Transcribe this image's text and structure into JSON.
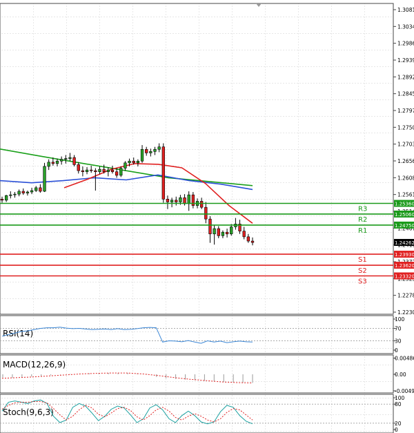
{
  "chart_data": {
    "type": "candlestick",
    "price_axis": {
      "ticks": [
        "1.30810",
        "1.30340",
        "1.29860",
        "1.29390",
        "1.28920",
        "1.28450",
        "1.27970",
        "1.27500",
        "1.27030",
        "1.26560",
        "1.26080",
        "1.25610",
        "1.25140",
        "1.24670",
        "1.24190",
        "1.23720",
        "1.23250",
        "1.22780",
        "1.22300"
      ],
      "range": [
        1.223,
        1.3081
      ]
    },
    "current_price": {
      "label": "1.24262",
      "value": 1.24262
    },
    "levels": [
      {
        "name": "R3",
        "tag": "1.25360",
        "value": 1.2536,
        "color": "#1a9a1a"
      },
      {
        "name": "R2",
        "tag": "1.25060",
        "value": 1.2506,
        "color": "#1a9a1a"
      },
      {
        "name": "R1",
        "tag": "1.24750",
        "value": 1.2475,
        "color": "#1a9a1a"
      },
      {
        "name": "S1",
        "tag": "1.23930",
        "value": 1.2393,
        "color": "#e02020"
      },
      {
        "name": "S2",
        "tag": "1.23620",
        "value": 1.2362,
        "color": "#e02020"
      },
      {
        "name": "S3",
        "tag": "1.23320",
        "value": 1.2332,
        "color": "#e02020"
      }
    ],
    "candles": [
      [
        1.2548,
        1.2555,
        1.2538,
        1.2545
      ],
      [
        1.2545,
        1.256,
        1.254,
        1.2558
      ],
      [
        1.2558,
        1.257,
        1.255,
        1.256
      ],
      [
        1.256,
        1.2568,
        1.2552,
        1.2562
      ],
      [
        1.2562,
        1.2575,
        1.2556,
        1.257
      ],
      [
        1.257,
        1.2578,
        1.256,
        1.2565
      ],
      [
        1.2565,
        1.2572,
        1.2558,
        1.2568
      ],
      [
        1.2568,
        1.258,
        1.2562,
        1.2572
      ],
      [
        1.2572,
        1.2585,
        1.2568,
        1.258
      ],
      [
        1.258,
        1.259,
        1.2566,
        1.257
      ],
      [
        1.257,
        1.265,
        1.2568,
        1.264
      ],
      [
        1.264,
        1.266,
        1.263,
        1.2652
      ],
      [
        1.2652,
        1.2665,
        1.2642,
        1.2648
      ],
      [
        1.2648,
        1.2662,
        1.264,
        1.2655
      ],
      [
        1.2655,
        1.2668,
        1.2645,
        1.266
      ],
      [
        1.266,
        1.2672,
        1.2648,
        1.2662
      ],
      [
        1.2662,
        1.2678,
        1.2655,
        1.2665
      ],
      [
        1.2665,
        1.2672,
        1.264,
        1.2645
      ],
      [
        1.2645,
        1.2652,
        1.262,
        1.2628
      ],
      [
        1.2628,
        1.264,
        1.2612,
        1.2625
      ],
      [
        1.2625,
        1.2638,
        1.2618,
        1.263
      ],
      [
        1.263,
        1.2642,
        1.2622,
        1.2628
      ],
      [
        1.2628,
        1.2635,
        1.2572,
        1.2625
      ],
      [
        1.2625,
        1.264,
        1.2618,
        1.2632
      ],
      [
        1.2632,
        1.2645,
        1.262,
        1.2625
      ],
      [
        1.2625,
        1.2638,
        1.2612,
        1.263
      ],
      [
        1.263,
        1.2642,
        1.262,
        1.2625
      ],
      [
        1.2625,
        1.2635,
        1.2608,
        1.2615
      ],
      [
        1.2615,
        1.264,
        1.261,
        1.2635
      ],
      [
        1.2635,
        1.2655,
        1.2628,
        1.265
      ],
      [
        1.265,
        1.2662,
        1.264,
        1.2655
      ],
      [
        1.2655,
        1.2665,
        1.2645,
        1.265
      ],
      [
        1.265,
        1.266,
        1.264,
        1.2655
      ],
      [
        1.2655,
        1.27,
        1.265,
        1.2688
      ],
      [
        1.2688,
        1.2695,
        1.267,
        1.2678
      ],
      [
        1.2678,
        1.269,
        1.2668,
        1.2682
      ],
      [
        1.2682,
        1.2695,
        1.2672,
        1.2688
      ],
      [
        1.2688,
        1.2705,
        1.268,
        1.2695
      ],
      [
        1.2695,
        1.2705,
        1.2538,
        1.2548
      ],
      [
        1.2548,
        1.2558,
        1.252,
        1.254
      ],
      [
        1.254,
        1.2552,
        1.2525,
        1.2545
      ],
      [
        1.2545,
        1.2555,
        1.253,
        1.254
      ],
      [
        1.254,
        1.256,
        1.2532,
        1.2552
      ],
      [
        1.2552,
        1.2562,
        1.253,
        1.2535
      ],
      [
        1.2535,
        1.257,
        1.2515,
        1.256
      ],
      [
        1.256,
        1.2568,
        1.2522,
        1.253
      ],
      [
        1.253,
        1.255,
        1.2522,
        1.2542
      ],
      [
        1.2542,
        1.2552,
        1.252,
        1.2525
      ],
      [
        1.2525,
        1.254,
        1.248,
        1.2492
      ],
      [
        1.2492,
        1.25,
        1.2425,
        1.245
      ],
      [
        1.245,
        1.2475,
        1.242,
        1.2465
      ],
      [
        1.2465,
        1.2472,
        1.2438,
        1.2445
      ],
      [
        1.2445,
        1.246,
        1.2438,
        1.2455
      ],
      [
        1.2455,
        1.2465,
        1.244,
        1.245
      ],
      [
        1.245,
        1.2478,
        1.2445,
        1.247
      ],
      [
        1.247,
        1.2495,
        1.2462,
        1.2478
      ],
      [
        1.2478,
        1.249,
        1.245,
        1.2458
      ],
      [
        1.2458,
        1.247,
        1.2435,
        1.2442
      ],
      [
        1.2442,
        1.245,
        1.2425,
        1.243
      ],
      [
        1.243,
        1.244,
        1.2418,
        1.2426
      ]
    ],
    "moving_averages": [
      {
        "color": "#1aa01a",
        "values": [
          1.2689,
          1.2668,
          1.2648,
          1.2628,
          1.2608,
          1.2597,
          1.2586
        ]
      },
      {
        "color": "#2a4fd6",
        "values": [
          1.26,
          1.2594,
          1.26,
          1.2608,
          1.2602,
          1.2616,
          1.26,
          1.259,
          1.2575
        ]
      },
      {
        "color": "#e02020",
        "values": [
          1.258,
          1.2604,
          1.2632,
          1.2648,
          1.2646,
          1.2636,
          1.2592,
          1.253,
          1.248
        ]
      }
    ],
    "rsi": {
      "label": "RSI(14)",
      "ticks": [
        "100",
        "70",
        "30",
        "0"
      ],
      "levels": [
        70,
        30
      ],
      "values": [
        45,
        50,
        55,
        60,
        62,
        66,
        70,
        72,
        72,
        74,
        71,
        69,
        70,
        68,
        66,
        67,
        68,
        66,
        69,
        66,
        67,
        69,
        72,
        73,
        72,
        26,
        30,
        29,
        27,
        31,
        26,
        22,
        30,
        26,
        29,
        24,
        27,
        29,
        27,
        26
      ]
    },
    "macd": {
      "label": "MACD(12,26,9)",
      "ticks": [
        "0.00486",
        "0.00",
        "-0.00499"
      ],
      "histogram": [
        -0.001,
        -0.0011,
        -0.0009,
        -0.0007,
        -0.0005,
        -0.0003,
        -0.0001,
        0.0001,
        0.0002,
        0.0003,
        0.0003,
        0.0004,
        0.0004,
        0.0004,
        0.0003,
        0.0001,
        -0.0008,
        -0.0012,
        -0.0014,
        -0.0016,
        -0.0018,
        -0.002,
        -0.0022,
        -0.0023,
        -0.0024,
        -0.0025,
        -0.0026
      ],
      "signal": [
        -0.0012,
        -0.001,
        -0.0008,
        -0.0005,
        -0.0002,
        0.0001,
        0.0003,
        0.0004,
        0.0004,
        0.0001,
        -0.0004,
        -0.001,
        -0.0015,
        -0.0019,
        -0.0023,
        -0.0025,
        -0.0026
      ]
    },
    "stochastic": {
      "label": "Stoch(9,6,3)",
      "ticks": [
        "100",
        "80",
        "20",
        "0"
      ],
      "levels": [
        80,
        20
      ],
      "k": [
        58,
        86,
        90,
        86,
        82,
        90,
        93,
        82,
        42,
        22,
        30,
        70,
        82,
        74,
        52,
        28,
        42,
        64,
        74,
        68,
        46,
        22,
        34,
        68,
        78,
        62,
        34,
        22,
        44,
        58,
        44,
        24,
        18,
        24,
        56,
        76,
        70,
        44,
        26,
        18
      ],
      "d": [
        64,
        76,
        84,
        86,
        86,
        88,
        88,
        84,
        66,
        46,
        30,
        42,
        62,
        76,
        68,
        48,
        40,
        52,
        66,
        70,
        60,
        40,
        30,
        44,
        62,
        70,
        58,
        38,
        30,
        42,
        50,
        42,
        30,
        24,
        34,
        54,
        66,
        62,
        46,
        30
      ]
    }
  }
}
